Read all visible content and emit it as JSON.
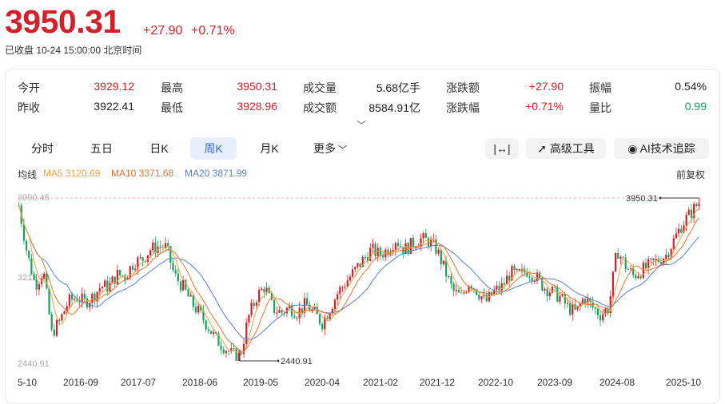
{
  "header": {
    "price": "3950.31",
    "change": "+27.90",
    "change_pct": "+0.71%",
    "status": "已收盘  10-24 15:00:00  北京时间"
  },
  "quote": {
    "open_label": "今开",
    "open": "3929.12",
    "high_label": "最高",
    "high": "3950.31",
    "vol_label": "成交量",
    "vol": "5.68亿手",
    "chg_label": "涨跌额",
    "chg": "+27.90",
    "amp_label": "振幅",
    "amp": "0.54%",
    "prev_label": "昨收",
    "prev": "3922.41",
    "low_label": "最低",
    "low": "3928.96",
    "amt_label": "成交额",
    "amt": "8584.91亿",
    "chgp_label": "涨跌幅",
    "chgp": "+0.71%",
    "ratio_label": "量比",
    "ratio": "0.99"
  },
  "tabs": [
    "分时",
    "五日",
    "日K",
    "周K",
    "月K",
    "更多"
  ],
  "tools": {
    "range_icon": "|↔|",
    "advanced": "高级工具",
    "ai": "AI技术追踪"
  },
  "ma": {
    "title": "均线",
    "ma5": "MA5 3120.69",
    "ma10": "MA10 3371.68",
    "ma20": "MA20 3871.99",
    "adjust": "前复权"
  },
  "colors": {
    "up": "#d4202a",
    "down": "#19a15f",
    "ma5": "#f2a23a",
    "ma10": "#e8732e",
    "ma20": "#5a7fd8",
    "accent": "#3366cc"
  },
  "chart_data": {
    "type": "candlestick",
    "y_top_label": "3990.46",
    "y_mid_label": "3213.33",
    "y_bottom_label": "2440.91",
    "ylim": [
      2440.91,
      3990.46
    ],
    "x_ticks": [
      "5-10",
      "2016-09",
      "2017-07",
      "2018-06",
      "2019-05",
      "2020-04",
      "2021-02",
      "2021-12",
      "2022-10",
      "2023-09",
      "2024-08",
      "2025-10"
    ],
    "high_marker": "3950.31",
    "low_marker": "2440.91",
    "trend": [
      [
        0,
        3920
      ],
      [
        2,
        3470
      ],
      [
        4,
        3160
      ],
      [
        6,
        3300
      ],
      [
        8,
        2700
      ],
      [
        10,
        2820
      ],
      [
        12,
        3000
      ],
      [
        14,
        3050
      ],
      [
        16,
        3000
      ],
      [
        18,
        3050
      ],
      [
        20,
        3150
      ],
      [
        22,
        3150
      ],
      [
        24,
        3260
      ],
      [
        26,
        3250
      ],
      [
        28,
        3380
      ],
      [
        30,
        3400
      ],
      [
        32,
        3500
      ],
      [
        34,
        3530
      ],
      [
        36,
        3520
      ],
      [
        38,
        3250
      ],
      [
        40,
        3150
      ],
      [
        42,
        3000
      ],
      [
        44,
        2900
      ],
      [
        46,
        2780
      ],
      [
        48,
        2650
      ],
      [
        50,
        2580
      ],
      [
        52,
        2500
      ],
      [
        54,
        2480
      ],
      [
        56,
        2850
      ],
      [
        58,
        3050
      ],
      [
        60,
        3150
      ],
      [
        62,
        2940
      ],
      [
        64,
        2900
      ],
      [
        66,
        2950
      ],
      [
        68,
        2900
      ],
      [
        70,
        2980
      ],
      [
        72,
        2900
      ],
      [
        74,
        2800
      ],
      [
        76,
        2950
      ],
      [
        78,
        3100
      ],
      [
        80,
        3200
      ],
      [
        82,
        3300
      ],
      [
        84,
        3400
      ],
      [
        86,
        3500
      ],
      [
        88,
        3450
      ],
      [
        90,
        3500
      ],
      [
        92,
        3600
      ],
      [
        94,
        3500
      ],
      [
        96,
        3550
      ],
      [
        98,
        3600
      ],
      [
        100,
        3580
      ],
      [
        102,
        3500
      ],
      [
        104,
        3300
      ],
      [
        106,
        3100
      ],
      [
        108,
        3050
      ],
      [
        110,
        3200
      ],
      [
        112,
        3100
      ],
      [
        114,
        3000
      ],
      [
        116,
        3100
      ],
      [
        118,
        3150
      ],
      [
        120,
        3280
      ],
      [
        122,
        3250
      ],
      [
        124,
        3300
      ],
      [
        126,
        3250
      ],
      [
        128,
        3150
      ],
      [
        130,
        3100
      ],
      [
        132,
        3050
      ],
      [
        134,
        2950
      ],
      [
        136,
        2900
      ],
      [
        138,
        3050
      ],
      [
        140,
        2950
      ],
      [
        142,
        2880
      ],
      [
        144,
        2950
      ],
      [
        146,
        3500
      ],
      [
        148,
        3350
      ],
      [
        150,
        3250
      ],
      [
        152,
        3300
      ],
      [
        154,
        3350
      ],
      [
        156,
        3400
      ],
      [
        158,
        3450
      ],
      [
        160,
        3600
      ],
      [
        162,
        3750
      ],
      [
        164,
        3850
      ],
      [
        166,
        3950
      ]
    ]
  }
}
